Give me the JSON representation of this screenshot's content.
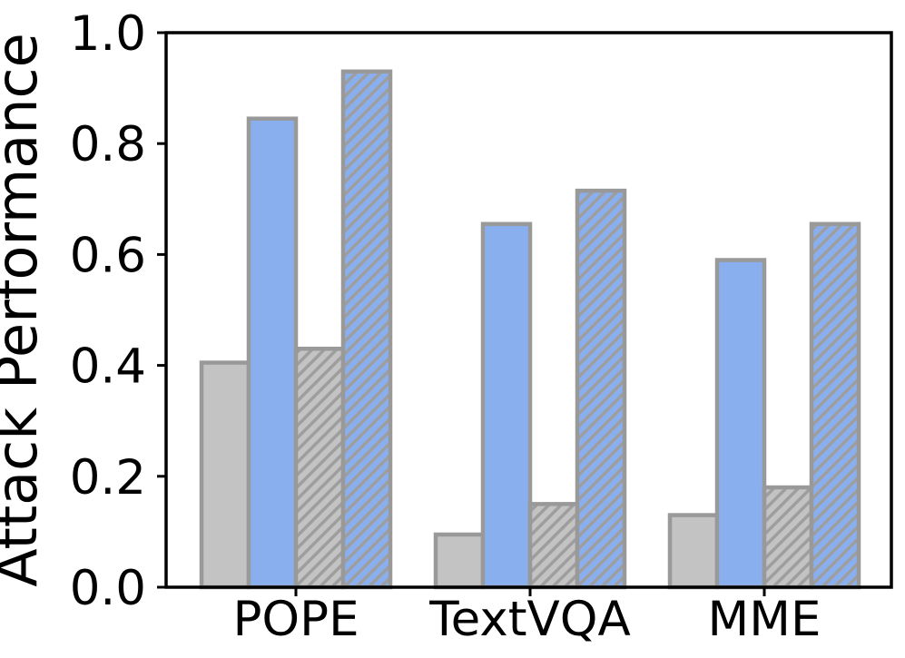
{
  "chart_data": {
    "type": "bar",
    "title": "",
    "xlabel": "",
    "ylabel": "Attack Performance",
    "categories": [
      "POPE",
      "TextVQA",
      "MME"
    ],
    "series": [
      {
        "name": "gray-solid",
        "fill": "#c3c3c3",
        "hatch": false,
        "values": [
          0.405,
          0.095,
          0.13
        ]
      },
      {
        "name": "blue-solid",
        "fill": "#8aafee",
        "hatch": false,
        "values": [
          0.845,
          0.655,
          0.59
        ]
      },
      {
        "name": "gray-hatched",
        "fill": "#c3c3c3",
        "hatch": true,
        "values": [
          0.43,
          0.15,
          0.18
        ]
      },
      {
        "name": "blue-hatched",
        "fill": "#8aafee",
        "hatch": true,
        "values": [
          0.93,
          0.715,
          0.655
        ]
      }
    ],
    "ylim": [
      0.0,
      1.0
    ],
    "yticks": [
      {
        "label": "0.0",
        "value": 0.0
      },
      {
        "label": "0.2",
        "value": 0.2
      },
      {
        "label": "0.4",
        "value": 0.4
      },
      {
        "label": "0.6",
        "value": 0.6
      },
      {
        "label": "0.8",
        "value": 0.8
      },
      {
        "label": "1.0",
        "value": 1.0
      }
    ],
    "hatch_style": "/",
    "edge_color": "#999999",
    "hatch_color": "#9e9e9e",
    "axis_color": "#000000",
    "background_color": "#ffffff",
    "grid": false,
    "legend": false
  }
}
